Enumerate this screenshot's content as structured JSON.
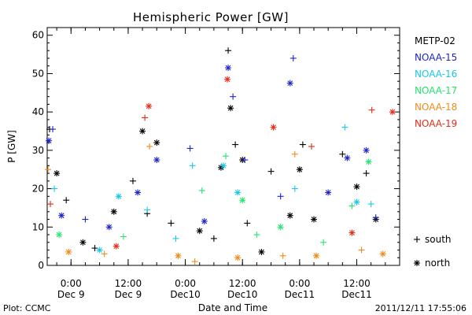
{
  "chart_data": {
    "type": "scatter",
    "title": "Hemispheric Power [GW]",
    "ylabel": "P [GW]",
    "xlabel": "Date and Time",
    "ylim": [
      0,
      62
    ],
    "xlim": [
      "2011-12-08 19:00",
      "2011-12-11 21:00"
    ],
    "yticks": [
      "0",
      "10",
      "20",
      "30",
      "40",
      "50",
      "60"
    ],
    "xticks": [
      {
        "at": "2011-12-09 00:00",
        "top": "0:00",
        "bottom": "Dec 9"
      },
      {
        "at": "2011-12-09 12:00",
        "top": "12:00",
        "bottom": "Dec 9"
      },
      {
        "at": "2011-12-10 00:00",
        "top": "0:00",
        "bottom": "Dec10"
      },
      {
        "at": "2011-12-10 12:00",
        "top": "12:00",
        "bottom": "Dec10"
      },
      {
        "at": "2011-12-11 00:00",
        "top": "0:00",
        "bottom": "Dec11"
      },
      {
        "at": "2011-12-11 12:00",
        "top": "12:00",
        "bottom": "Dec11"
      }
    ],
    "marker_legend": [
      {
        "symbol": "+",
        "label": "south"
      },
      {
        "symbol": "*",
        "label": "north"
      }
    ],
    "series": [
      {
        "name": "METP-02",
        "color": "#000000",
        "points": [
          {
            "t": "2011-12-08 19:30",
            "y": 35.5,
            "m": "+"
          },
          {
            "t": "2011-12-08 21:00",
            "y": 24.0,
            "m": "*"
          },
          {
            "t": "2011-12-08 23:00",
            "y": 17.0,
            "m": "+"
          },
          {
            "t": "2011-12-09 02:30",
            "y": 6.0,
            "m": "*"
          },
          {
            "t": "2011-12-09 05:00",
            "y": 4.5,
            "m": "+"
          },
          {
            "t": "2011-12-09 09:00",
            "y": 14.0,
            "m": "*"
          },
          {
            "t": "2011-12-09 13:00",
            "y": 22.0,
            "m": "+"
          },
          {
            "t": "2011-12-09 15:00",
            "y": 35.0,
            "m": "*"
          },
          {
            "t": "2011-12-09 16:00",
            "y": 13.5,
            "m": "+"
          },
          {
            "t": "2011-12-09 18:00",
            "y": 32.0,
            "m": "*"
          },
          {
            "t": "2011-12-09 21:00",
            "y": 11.0,
            "m": "+"
          },
          {
            "t": "2011-12-10 03:00",
            "y": 9.0,
            "m": "*"
          },
          {
            "t": "2011-12-10 06:00",
            "y": 7.0,
            "m": "+"
          },
          {
            "t": "2011-12-10 07:30",
            "y": 25.5,
            "m": "*"
          },
          {
            "t": "2011-12-10 09:00",
            "y": 56.0,
            "m": "+"
          },
          {
            "t": "2011-12-10 09:30",
            "y": 41.0,
            "m": "*"
          },
          {
            "t": "2011-12-10 10:30",
            "y": 31.5,
            "m": "+"
          },
          {
            "t": "2011-12-10 12:00",
            "y": 27.5,
            "m": "*"
          },
          {
            "t": "2011-12-10 13:00",
            "y": 11.0,
            "m": "+"
          },
          {
            "t": "2011-12-10 16:00",
            "y": 3.5,
            "m": "*"
          },
          {
            "t": "2011-12-10 18:00",
            "y": 24.5,
            "m": "+"
          },
          {
            "t": "2011-12-10 22:00",
            "y": 13.0,
            "m": "*"
          },
          {
            "t": "2011-12-11 00:00",
            "y": 25.0,
            "m": "*"
          },
          {
            "t": "2011-12-11 00:40",
            "y": 31.5,
            "m": "+"
          },
          {
            "t": "2011-12-11 03:00",
            "y": 12.0,
            "m": "*"
          },
          {
            "t": "2011-12-11 09:00",
            "y": 29.0,
            "m": "+"
          },
          {
            "t": "2011-12-11 12:00",
            "y": 20.5,
            "m": "*"
          },
          {
            "t": "2011-12-11 14:00",
            "y": 24.0,
            "m": "+"
          },
          {
            "t": "2011-12-11 16:00",
            "y": 12.0,
            "m": "*"
          }
        ]
      },
      {
        "name": "NOAA-15",
        "color": "#1e24c8",
        "points": [
          {
            "t": "2011-12-08 19:20",
            "y": 32.5,
            "m": "*"
          },
          {
            "t": "2011-12-08 20:10",
            "y": 35.5,
            "m": "+"
          },
          {
            "t": "2011-12-08 22:00",
            "y": 13.0,
            "m": "*"
          },
          {
            "t": "2011-12-09 03:00",
            "y": 12.0,
            "m": "+"
          },
          {
            "t": "2011-12-09 08:00",
            "y": 10.0,
            "m": "*"
          },
          {
            "t": "2011-12-09 14:00",
            "y": 19.0,
            "m": "*"
          },
          {
            "t": "2011-12-09 18:00",
            "y": 27.5,
            "m": "*"
          },
          {
            "t": "2011-12-10 01:00",
            "y": 30.5,
            "m": "+"
          },
          {
            "t": "2011-12-10 04:00",
            "y": 11.5,
            "m": "*"
          },
          {
            "t": "2011-12-10 09:00",
            "y": 51.5,
            "m": "*"
          },
          {
            "t": "2011-12-10 10:00",
            "y": 44.0,
            "m": "+"
          },
          {
            "t": "2011-12-10 12:30",
            "y": 27.5,
            "m": "+"
          },
          {
            "t": "2011-12-10 20:00",
            "y": 18.0,
            "m": "+"
          },
          {
            "t": "2011-12-10 22:00",
            "y": 47.5,
            "m": "*"
          },
          {
            "t": "2011-12-10 22:40",
            "y": 54.0,
            "m": "+"
          },
          {
            "t": "2011-12-11 06:00",
            "y": 19.0,
            "m": "*"
          },
          {
            "t": "2011-12-11 10:00",
            "y": 28.0,
            "m": "*"
          },
          {
            "t": "2011-12-11 14:00",
            "y": 30.0,
            "m": "*"
          },
          {
            "t": "2011-12-11 16:00",
            "y": 12.5,
            "m": "+"
          }
        ]
      },
      {
        "name": "NOAA-16",
        "color": "#19c8e6",
        "points": [
          {
            "t": "2011-12-08 20:30",
            "y": 20.0,
            "m": "+"
          },
          {
            "t": "2011-12-09 06:00",
            "y": 4.0,
            "m": "*"
          },
          {
            "t": "2011-12-09 10:00",
            "y": 18.0,
            "m": "*"
          },
          {
            "t": "2011-12-09 16:00",
            "y": 14.5,
            "m": "+"
          },
          {
            "t": "2011-12-09 22:00",
            "y": 7.0,
            "m": "+"
          },
          {
            "t": "2011-12-10 01:30",
            "y": 26.0,
            "m": "+"
          },
          {
            "t": "2011-12-10 08:00",
            "y": 26.0,
            "m": "*"
          },
          {
            "t": "2011-12-10 11:00",
            "y": 19.0,
            "m": "*"
          },
          {
            "t": "2011-12-10 23:00",
            "y": 20.0,
            "m": "+"
          },
          {
            "t": "2011-12-11 09:30",
            "y": 36.0,
            "m": "+"
          },
          {
            "t": "2011-12-11 12:00",
            "y": 16.5,
            "m": "*"
          },
          {
            "t": "2011-12-11 15:00",
            "y": 16.0,
            "m": "+"
          }
        ]
      },
      {
        "name": "NOAA-17",
        "color": "#22e66e",
        "points": [
          {
            "t": "2011-12-08 21:30",
            "y": 8.0,
            "m": "*"
          },
          {
            "t": "2011-12-09 11:00",
            "y": 7.5,
            "m": "+"
          },
          {
            "t": "2011-12-10 03:30",
            "y": 19.5,
            "m": "+"
          },
          {
            "t": "2011-12-10 08:30",
            "y": 28.5,
            "m": "+"
          },
          {
            "t": "2011-12-10 12:00",
            "y": 17.0,
            "m": "*"
          },
          {
            "t": "2011-12-10 15:00",
            "y": 8.0,
            "m": "+"
          },
          {
            "t": "2011-12-10 20:00",
            "y": 10.0,
            "m": "*"
          },
          {
            "t": "2011-12-11 05:00",
            "y": 6.0,
            "m": "+"
          },
          {
            "t": "2011-12-11 11:00",
            "y": 15.5,
            "m": "+"
          },
          {
            "t": "2011-12-11 14:30",
            "y": 27.0,
            "m": "*"
          }
        ]
      },
      {
        "name": "NOAA-18",
        "color": "#f08c19",
        "points": [
          {
            "t": "2011-12-08 19:10",
            "y": 25.0,
            "m": "+"
          },
          {
            "t": "2011-12-08 23:30",
            "y": 3.5,
            "m": "*"
          },
          {
            "t": "2011-12-09 07:00",
            "y": 3.0,
            "m": "+"
          },
          {
            "t": "2011-12-09 16:30",
            "y": 31.0,
            "m": "+"
          },
          {
            "t": "2011-12-09 22:30",
            "y": 2.5,
            "m": "*"
          },
          {
            "t": "2011-12-10 02:00",
            "y": 1.0,
            "m": "+"
          },
          {
            "t": "2011-12-10 11:00",
            "y": 2.0,
            "m": "*"
          },
          {
            "t": "2011-12-10 20:30",
            "y": 2.5,
            "m": "+"
          },
          {
            "t": "2011-12-10 23:00",
            "y": 29.0,
            "m": "+"
          },
          {
            "t": "2011-12-11 03:30",
            "y": 2.5,
            "m": "*"
          },
          {
            "t": "2011-12-11 13:00",
            "y": 4.0,
            "m": "+"
          },
          {
            "t": "2011-12-11 17:30",
            "y": 3.0,
            "m": "*"
          }
        ]
      },
      {
        "name": "NOAA-19",
        "color": "#e62b17",
        "points": [
          {
            "t": "2011-12-08 19:40",
            "y": 16.0,
            "m": "+"
          },
          {
            "t": "2011-12-09 09:30",
            "y": 5.0,
            "m": "*"
          },
          {
            "t": "2011-12-09 15:30",
            "y": 38.5,
            "m": "+"
          },
          {
            "t": "2011-12-09 16:20",
            "y": 41.5,
            "m": "*"
          },
          {
            "t": "2011-12-10 08:50",
            "y": 48.5,
            "m": "*"
          },
          {
            "t": "2011-12-10 18:30",
            "y": 36.0,
            "m": "*"
          },
          {
            "t": "2011-12-11 02:30",
            "y": 31.0,
            "m": "+"
          },
          {
            "t": "2011-12-11 11:00",
            "y": 8.5,
            "m": "*"
          },
          {
            "t": "2011-12-11 15:10",
            "y": 40.5,
            "m": "+"
          },
          {
            "t": "2011-12-11 19:30",
            "y": 40.0,
            "m": "*"
          }
        ]
      }
    ]
  },
  "footer": {
    "left": "Plot: CCMC",
    "right": "2011/12/11 17:55:06"
  }
}
